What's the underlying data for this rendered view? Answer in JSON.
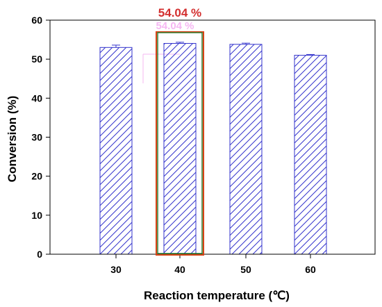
{
  "chart_data": {
    "type": "bar",
    "categories": [
      "30",
      "40",
      "50",
      "60"
    ],
    "values": [
      53.0,
      54.04,
      53.8,
      51.0
    ],
    "errors": [
      0.6,
      0.3,
      0.3,
      0.2
    ],
    "xlabel": "Reaction temperature (℃)",
    "ylabel": "Conversion (%)",
    "ylim": [
      0,
      60
    ],
    "yticks": [
      0,
      10,
      20,
      30,
      40,
      50,
      60
    ],
    "grid": false,
    "bar_fill": "hatched",
    "colors": {
      "bar": "#3333cc",
      "highlight_inner": "#2e7d32",
      "highlight_outer": "#d84315",
      "callout": "#d32f2f",
      "ghost": "#f3a6f0"
    },
    "highlight": {
      "category": "40",
      "label": "54.04 %",
      "ghost_label": "54.04 %"
    }
  }
}
